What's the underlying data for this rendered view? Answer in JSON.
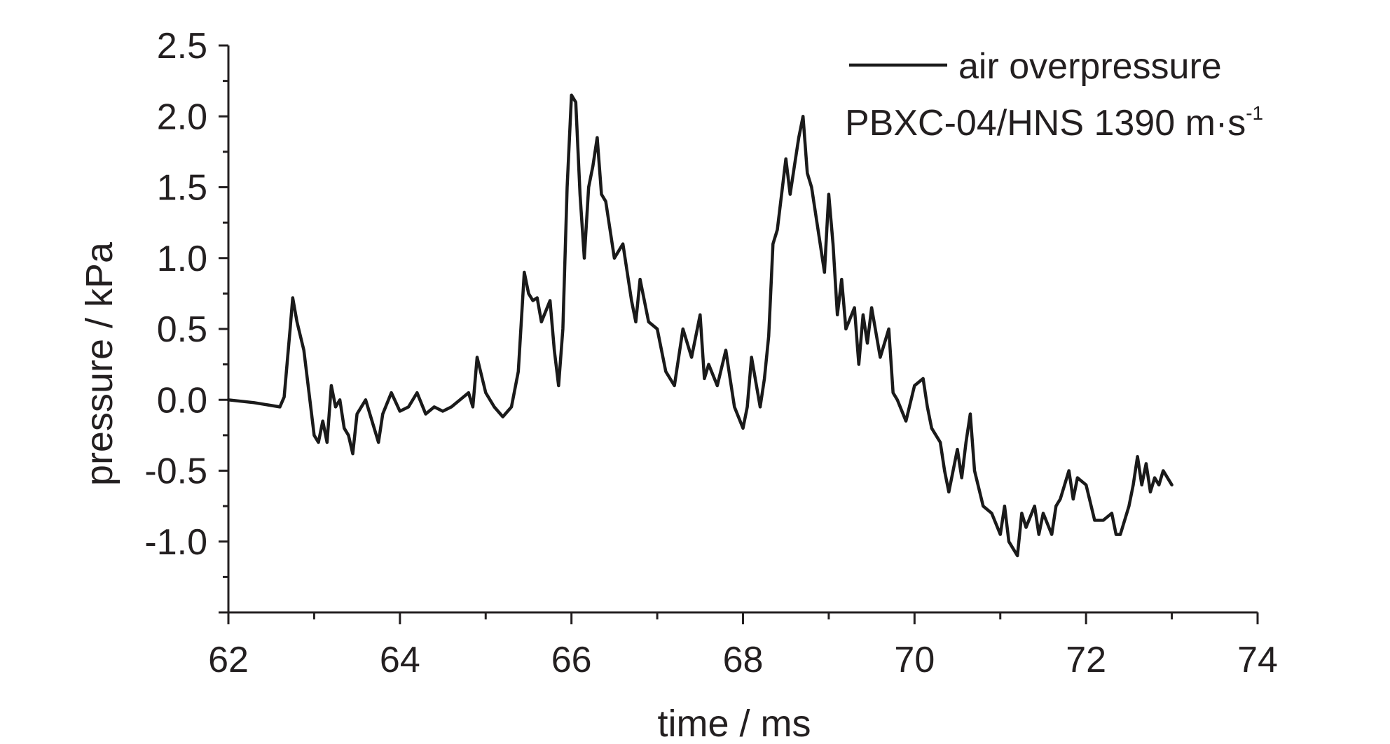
{
  "chart_data": {
    "type": "line",
    "title": "",
    "xlabel": "time / ms",
    "ylabel": "pressure / kPa",
    "xlim": [
      62,
      74
    ],
    "ylim": [
      -1.5,
      2.5
    ],
    "x_ticks": [
      62,
      64,
      66,
      68,
      70,
      72,
      74
    ],
    "x_tick_labels": [
      "62",
      "64",
      "66",
      "68",
      "70",
      "72",
      "74"
    ],
    "y_ticks": [
      2.5,
      2.0,
      1.5,
      1.0,
      0.5,
      0.0,
      -0.5,
      -1.0
    ],
    "y_tick_labels": [
      "2.5",
      "2.0",
      "1.5",
      "1.0",
      "0.5",
      "0.0",
      "-0.5",
      "-1.0"
    ],
    "grid": false,
    "legend": {
      "placement": "top-right",
      "entries": [
        "air overpressure"
      ],
      "annotation_main": "PBXC-04/HNS  1390 m·s",
      "annotation_sup": "-1"
    },
    "series": [
      {
        "name": "air overpressure",
        "color": "#1a1a1a",
        "x": [
          62.0,
          62.3,
          62.6,
          62.65,
          62.72,
          62.75,
          62.8,
          62.88,
          62.95,
          63.0,
          63.05,
          63.1,
          63.15,
          63.2,
          63.25,
          63.3,
          63.35,
          63.4,
          63.45,
          63.5,
          63.6,
          63.7,
          63.75,
          63.8,
          63.9,
          64.0,
          64.1,
          64.2,
          64.3,
          64.4,
          64.5,
          64.6,
          64.7,
          64.8,
          64.85,
          64.9,
          65.0,
          65.1,
          65.2,
          65.3,
          65.38,
          65.45,
          65.5,
          65.55,
          65.6,
          65.65,
          65.75,
          65.8,
          65.85,
          65.9,
          65.95,
          66.0,
          66.05,
          66.1,
          66.15,
          66.2,
          66.25,
          66.3,
          66.35,
          66.4,
          66.5,
          66.6,
          66.7,
          66.75,
          66.8,
          66.9,
          67.0,
          67.1,
          67.2,
          67.3,
          67.4,
          67.5,
          67.55,
          67.6,
          67.7,
          67.8,
          67.85,
          67.9,
          68.0,
          68.05,
          68.1,
          68.2,
          68.25,
          68.3,
          68.35,
          68.4,
          68.5,
          68.55,
          68.6,
          68.65,
          68.7,
          68.75,
          68.8,
          68.9,
          68.95,
          69.0,
          69.05,
          69.1,
          69.15,
          69.2,
          69.3,
          69.35,
          69.4,
          69.45,
          69.5,
          69.6,
          69.7,
          69.75,
          69.8,
          69.9,
          70.0,
          70.1,
          70.15,
          70.2,
          70.3,
          70.35,
          70.4,
          70.5,
          70.55,
          70.6,
          70.65,
          70.7,
          70.8,
          70.9,
          71.0,
          71.05,
          71.1,
          71.2,
          71.25,
          71.3,
          71.4,
          71.45,
          71.5,
          71.6,
          71.65,
          71.7,
          71.8,
          71.85,
          71.9,
          72.0,
          72.1,
          72.2,
          72.3,
          72.35,
          72.4,
          72.5,
          72.55,
          72.6,
          72.65,
          72.7,
          72.75,
          72.8,
          72.85,
          72.9,
          73.0
        ],
        "y": [
          0.0,
          -0.02,
          -0.05,
          0.02,
          0.5,
          0.72,
          0.55,
          0.35,
          0.0,
          -0.25,
          -0.3,
          -0.15,
          -0.3,
          0.1,
          -0.05,
          0.0,
          -0.2,
          -0.25,
          -0.38,
          -0.1,
          0.0,
          -0.2,
          -0.3,
          -0.1,
          0.05,
          -0.08,
          -0.05,
          0.05,
          -0.1,
          -0.05,
          -0.08,
          -0.05,
          0.0,
          0.05,
          -0.05,
          0.3,
          0.05,
          -0.05,
          -0.12,
          -0.05,
          0.2,
          0.9,
          0.75,
          0.7,
          0.72,
          0.55,
          0.7,
          0.35,
          0.1,
          0.5,
          1.5,
          2.15,
          2.1,
          1.45,
          1.0,
          1.5,
          1.65,
          1.85,
          1.45,
          1.4,
          1.0,
          1.1,
          0.7,
          0.55,
          0.85,
          0.55,
          0.5,
          0.2,
          0.1,
          0.5,
          0.3,
          0.6,
          0.15,
          0.25,
          0.1,
          0.35,
          0.15,
          -0.05,
          -0.2,
          -0.05,
          0.3,
          -0.05,
          0.15,
          0.45,
          1.1,
          1.2,
          1.7,
          1.45,
          1.65,
          1.85,
          2.0,
          1.6,
          1.5,
          1.1,
          0.9,
          1.45,
          1.1,
          0.6,
          0.85,
          0.5,
          0.65,
          0.25,
          0.6,
          0.4,
          0.65,
          0.3,
          0.5,
          0.05,
          0.0,
          -0.15,
          0.1,
          0.15,
          -0.05,
          -0.2,
          -0.3,
          -0.5,
          -0.65,
          -0.35,
          -0.55,
          -0.3,
          -0.1,
          -0.5,
          -0.75,
          -0.8,
          -0.95,
          -0.75,
          -1.0,
          -1.1,
          -0.8,
          -0.9,
          -0.75,
          -0.95,
          -0.8,
          -0.95,
          -0.75,
          -0.7,
          -0.5,
          -0.7,
          -0.55,
          -0.6,
          -0.85,
          -0.85,
          -0.8,
          -0.95,
          -0.95,
          -0.75,
          -0.6,
          -0.4,
          -0.6,
          -0.45,
          -0.65,
          -0.55,
          -0.6,
          -0.5,
          -0.6
        ]
      }
    ]
  }
}
